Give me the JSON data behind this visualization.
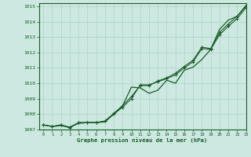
{
  "xlabel": "Graphe pression niveau de la mer (hPa)",
  "xlim": [
    -0.5,
    23
  ],
  "ylim": [
    1007,
    1015.2
  ],
  "yticks": [
    1007,
    1008,
    1009,
    1010,
    1011,
    1012,
    1013,
    1014,
    1015
  ],
  "xticks": [
    0,
    1,
    2,
    3,
    4,
    5,
    6,
    7,
    8,
    9,
    10,
    11,
    12,
    13,
    14,
    15,
    16,
    17,
    18,
    19,
    20,
    21,
    22,
    23
  ],
  "bg_color": "#cce8e0",
  "grid_color": "#b0d4c8",
  "line_color": "#1a5c2a",
  "line1_y": [
    1007.3,
    1007.2,
    1007.25,
    1007.15,
    1007.4,
    1007.45,
    1007.45,
    1007.5,
    1008.0,
    1008.55,
    1009.75,
    1009.7,
    1009.35,
    1009.55,
    1010.2,
    1010.0,
    1010.85,
    1011.05,
    1011.55,
    1012.2,
    1013.5,
    1014.1,
    1014.35,
    1015.05
  ],
  "line2_y": [
    1007.3,
    1007.2,
    1007.3,
    1007.15,
    1007.45,
    1007.45,
    1007.45,
    1007.55,
    1008.05,
    1008.55,
    1009.15,
    1009.85,
    1009.85,
    1010.15,
    1010.35,
    1010.65,
    1011.1,
    1011.5,
    1012.35,
    1012.25,
    1013.3,
    1013.85,
    1014.35,
    1015.0
  ],
  "line3_y": [
    1007.3,
    1007.2,
    1007.3,
    1007.1,
    1007.45,
    1007.45,
    1007.45,
    1007.55,
    1008.0,
    1008.45,
    1009.0,
    1009.9,
    1009.9,
    1010.1,
    1010.3,
    1010.55,
    1011.0,
    1011.4,
    1012.25,
    1012.2,
    1013.15,
    1013.7,
    1014.2,
    1014.9
  ]
}
